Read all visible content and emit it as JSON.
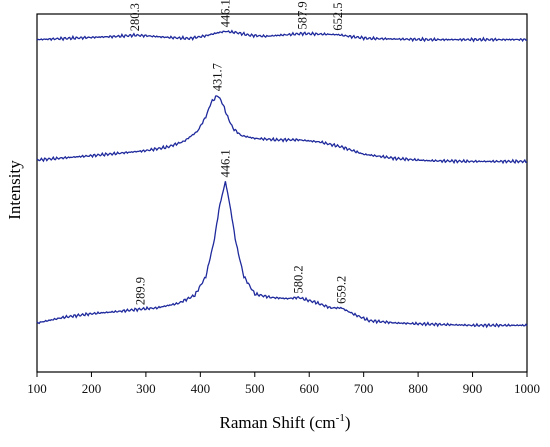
{
  "chart_data": {
    "type": "line",
    "xlabel": "Raman Shift (cm",
    "xlabel_sup": "-1",
    "xlabel_tail": ")",
    "ylabel": "Intensity",
    "xlim": [
      100,
      1000
    ],
    "xticks": [
      "100",
      "200",
      "300",
      "400",
      "500",
      "600",
      "700",
      "800",
      "900",
      "1000"
    ],
    "line_color": "#1f2a9c",
    "series": [
      {
        "x": [
          100,
          150,
          200,
          250,
          280,
          300,
          340,
          380,
          410,
          430,
          446,
          465,
          490,
          520,
          560,
          587.9,
          620,
          652.5,
          680,
          710,
          760,
          820,
          880,
          950,
          1000
        ],
        "y": [
          0.68,
          0.7,
          0.72,
          0.74,
          0.76,
          0.75,
          0.72,
          0.7,
          0.75,
          0.8,
          0.83,
          0.81,
          0.76,
          0.74,
          0.77,
          0.79,
          0.78,
          0.77,
          0.73,
          0.7,
          0.69,
          0.68,
          0.68,
          0.68,
          0.68
        ],
        "peaks": [
          {
            "x": 280.3,
            "label": "280.3"
          },
          {
            "x": 446.1,
            "label": "446.1"
          },
          {
            "x": 587.9,
            "label": "587.9"
          },
          {
            "x": 652.5,
            "label": "652.5"
          }
        ]
      },
      {
        "x": [
          100,
          150,
          200,
          260,
          300,
          340,
          370,
          395,
          410,
          420,
          431.7,
          440,
          450,
          460,
          475,
          500,
          540,
          580,
          620,
          660,
          700,
          760,
          820,
          900,
          1000
        ],
        "y": [
          0.0,
          0.03,
          0.06,
          0.1,
          0.13,
          0.18,
          0.26,
          0.4,
          0.6,
          0.8,
          0.9,
          0.8,
          0.6,
          0.44,
          0.34,
          0.3,
          0.28,
          0.28,
          0.25,
          0.18,
          0.08,
          0.02,
          -0.01,
          -0.02,
          -0.02
        ],
        "peaks": [
          {
            "x": 431.7,
            "label": "431.7"
          }
        ]
      },
      {
        "x": [
          100,
          150,
          200,
          250,
          289.9,
          320,
          360,
          390,
          410,
          425,
          435,
          446.1,
          455,
          465,
          480,
          500,
          530,
          560,
          580.2,
          610,
          640,
          659.2,
          680,
          710,
          760,
          820,
          900,
          1000
        ],
        "y": [
          0.0,
          0.05,
          0.08,
          0.1,
          0.12,
          0.13,
          0.17,
          0.24,
          0.4,
          0.7,
          1.0,
          1.22,
          1.0,
          0.7,
          0.4,
          0.25,
          0.22,
          0.21,
          0.22,
          0.18,
          0.13,
          0.13,
          0.08,
          0.02,
          0.0,
          -0.01,
          -0.02,
          -0.02
        ],
        "peaks": [
          {
            "x": 289.9,
            "label": "289.9"
          },
          {
            "x": 446.1,
            "label": "446.1"
          },
          {
            "x": 580.2,
            "label": "580.2"
          },
          {
            "x": 659.2,
            "label": "659.2"
          }
        ]
      }
    ]
  }
}
